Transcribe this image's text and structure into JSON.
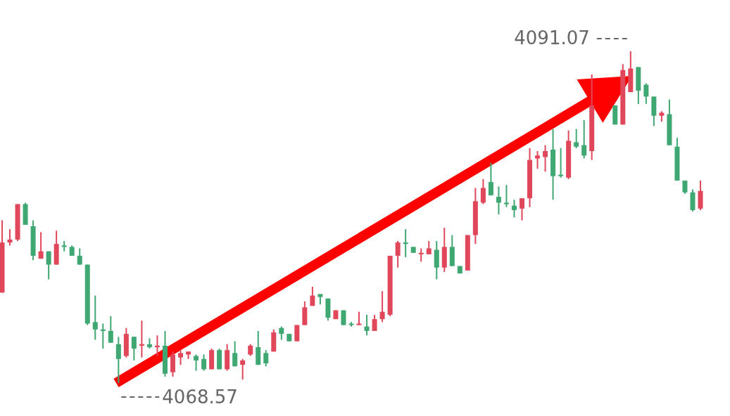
{
  "chart_data": {
    "type": "candlestick",
    "categories": [
      null,
      null,
      null,
      null,
      null,
      null,
      null,
      null,
      null,
      null,
      null,
      null,
      null,
      null,
      null,
      null,
      null,
      null,
      null,
      null,
      null,
      null,
      null,
      null,
      null,
      null,
      null,
      null,
      null,
      null,
      null,
      null,
      null,
      null,
      null,
      null,
      null,
      null,
      null,
      null,
      null,
      null,
      null,
      null,
      null,
      null,
      null,
      null,
      null,
      null,
      null,
      null,
      null,
      null,
      null,
      null,
      null,
      null,
      null,
      null,
      null,
      null,
      null,
      null,
      null,
      null,
      null,
      null,
      null,
      null,
      null,
      null,
      null,
      null,
      null,
      null,
      null,
      null,
      null,
      null,
      null,
      null,
      null,
      null,
      null,
      null,
      null,
      null,
      null,
      null,
      null
    ],
    "ohlc": [
      [
        4074.7,
        4079.6,
        4074.7,
        4078.1
      ],
      [
        4078.1,
        4079.0,
        4077.9,
        4078.3
      ],
      [
        4078.3,
        4080.7,
        4078.2,
        4080.7
      ],
      [
        4080.7,
        4080.8,
        4079.3,
        4079.3
      ],
      [
        4079.2,
        4079.6,
        4076.9,
        4077.2
      ],
      [
        4077.0,
        4078.8,
        4077.0,
        4077.5
      ],
      [
        4077.5,
        4077.5,
        4075.6,
        4076.6
      ],
      [
        4076.6,
        4078.9,
        4076.6,
        4078.0
      ],
      [
        4077.9,
        4078.2,
        4077.5,
        4077.8
      ],
      [
        4077.8,
        4077.9,
        4077.2,
        4077.2
      ],
      [
        4077.2,
        4077.7,
        4076.6,
        4076.6
      ],
      [
        4076.6,
        4076.6,
        4072.5,
        4072.6
      ],
      [
        4072.7,
        4074.5,
        4071.5,
        4072.2
      ],
      [
        4072.2,
        4072.6,
        4070.9,
        4072.1
      ],
      [
        4072.1,
        4073.1,
        4071.3,
        4071.3
      ],
      [
        4071.2,
        4071.7,
        4068.57,
        4070.2
      ],
      [
        4070.4,
        4072.3,
        4070.3,
        4071.9
      ],
      [
        4071.7,
        4071.7,
        4070.1,
        4070.9
      ],
      [
        4071.1,
        4072.8,
        4070.3,
        4071.2
      ],
      [
        4071.2,
        4071.6,
        4070.9,
        4071.0
      ],
      [
        4071.0,
        4071.8,
        4070.4,
        4071.1
      ],
      [
        4071.1,
        4072.1,
        4069.0,
        4069.2
      ],
      [
        4069.3,
        4070.7,
        4069.0,
        4070.5
      ],
      [
        4070.3,
        4070.8,
        4069.8,
        4070.6
      ],
      [
        4070.5,
        4070.7,
        4070.2,
        4070.7
      ],
      [
        4070.4,
        4070.5,
        4069.4,
        4070.1
      ],
      [
        4070.2,
        4070.5,
        4069.4,
        4069.5
      ],
      [
        4069.5,
        4070.9,
        4069.5,
        4070.8
      ],
      [
        4070.8,
        4070.9,
        4069.5,
        4069.5
      ],
      [
        4069.5,
        4071.2,
        4069.4,
        4070.8
      ],
      [
        4070.6,
        4071.4,
        4069.7,
        4069.7
      ],
      [
        4069.8,
        4070.2,
        4068.8,
        4070.1
      ],
      [
        4070.5,
        4071.2,
        4070.4,
        4071.1
      ],
      [
        4071.0,
        4072.1,
        4069.8,
        4069.8
      ],
      [
        4070.6,
        4070.8,
        4069.7,
        4069.9
      ],
      [
        4070.7,
        4072.2,
        4070.7,
        4072.0
      ],
      [
        4072.3,
        4072.4,
        4071.5,
        4071.9
      ],
      [
        4071.9,
        4071.9,
        4071.4,
        4071.4
      ],
      [
        4071.4,
        4072.5,
        4071.4,
        4072.5
      ],
      [
        4072.5,
        4074.1,
        4072.5,
        4073.7
      ],
      [
        4073.8,
        4075.1,
        4073.8,
        4074.5
      ],
      [
        4074.6,
        4074.6,
        4073.9,
        4074.4
      ],
      [
        4074.3,
        4074.3,
        4072.8,
        4073.0
      ],
      [
        4072.9,
        4073.5,
        4072.9,
        4073.5
      ],
      [
        4073.5,
        4073.5,
        4072.5,
        4072.5
      ],
      [
        4072.6,
        4072.7,
        4072.4,
        4072.5
      ],
      [
        4072.5,
        4073.4,
        4072.5,
        4072.6
      ],
      [
        4072.4,
        4073.2,
        4071.8,
        4072.1
      ],
      [
        4072.1,
        4073.2,
        4072.1,
        4072.9
      ],
      [
        4072.9,
        4074.8,
        4072.7,
        4073.4
      ],
      [
        4073.2,
        4077.2,
        4073.1,
        4077.2
      ],
      [
        4077.2,
        4078.2,
        4076.4,
        4078.1
      ],
      [
        4078.1,
        4079.0,
        4077.1,
        4078.0
      ],
      [
        4077.8,
        4077.8,
        4077.4,
        4077.4
      ],
      [
        4077.3,
        4077.7,
        4076.8,
        4077.4
      ],
      [
        4077.3,
        4078.2,
        4077.3,
        4077.7
      ],
      [
        4077.6,
        4078.2,
        4075.6,
        4076.4
      ],
      [
        4076.4,
        4079.1,
        4076.1,
        4077.8
      ],
      [
        4077.8,
        4078.6,
        4076.5,
        4076.5
      ],
      [
        4076.5,
        4076.5,
        4076.0,
        4076.0
      ],
      [
        4076.2,
        4078.6,
        4076.2,
        4078.6
      ],
      [
        4078.6,
        4081.8,
        4078.0,
        4080.9
      ],
      [
        4080.8,
        4082.4,
        4080.7,
        4081.8
      ],
      [
        4082.2,
        4083.5,
        4081.3,
        4081.3
      ],
      [
        4081.2,
        4081.9,
        4080.0,
        4080.8
      ],
      [
        4080.8,
        4082.0,
        4080.5,
        4080.7
      ],
      [
        4080.6,
        4081.0,
        4079.8,
        4080.3
      ],
      [
        4080.4,
        4081.1,
        4079.6,
        4081.1
      ],
      [
        4081.1,
        4084.5,
        4080.5,
        4083.7
      ],
      [
        4083.8,
        4084.3,
        4083.1,
        4084.0
      ],
      [
        4083.9,
        4084.7,
        4082.9,
        4084.3
      ],
      [
        4084.4,
        4085.8,
        4081.0,
        4082.6
      ],
      [
        4082.7,
        4084.5,
        4082.5,
        4082.6
      ],
      [
        4082.5,
        4085.7,
        4082.4,
        4085.0
      ],
      [
        4084.9,
        4085.8,
        4084.5,
        4084.6
      ],
      [
        4084.7,
        4086.4,
        4083.8,
        4084.0
      ],
      [
        4084.3,
        4089.5,
        4083.7,
        4087.4
      ],
      null,
      null,
      [
        4087.4,
        4087.4,
        4086.1,
        4086.1
      ],
      [
        4086.1,
        4090.2,
        4086.1,
        4089.8
      ],
      [
        4088.3,
        4091.07,
        4088.3,
        4089.9
      ],
      [
        4090.0,
        4090.0,
        4087.5,
        4088.4
      ],
      [
        4088.8,
        4088.9,
        4087.5,
        4088.0
      ],
      [
        4088.0,
        4088.0,
        4086.0,
        4086.7
      ],
      [
        4086.7,
        4087.0,
        4086.3,
        4086.9
      ],
      [
        4086.8,
        4087.8,
        4084.7,
        4084.7
      ],
      [
        4084.6,
        4085.2,
        4082.3,
        4082.3
      ],
      [
        4082.3,
        4082.3,
        4081.4,
        4081.5
      ],
      [
        4081.5,
        4081.7,
        4080.2,
        4080.3
      ],
      [
        4080.4,
        4082.3,
        4080.3,
        4081.6
      ]
    ],
    "colors": [
      "#e0475a",
      "#e0475a",
      "#e0475a",
      "#3fa772",
      "#3fa772",
      "#e0475a",
      "#3fa772",
      "#e0475a",
      "#3fa772",
      "#3fa772",
      "#3fa772",
      "#3fa772",
      "#3fa772",
      "#3fa772",
      "#3fa772",
      "#3fa772",
      "#e0475a",
      "#3fa772",
      "#e0475a",
      "#3fa772",
      "#e0475a",
      "#3fa772",
      "#e0475a",
      "#e0475a",
      "#e0475a",
      "#3fa772",
      "#3fa772",
      "#e0475a",
      "#3fa772",
      "#e0475a",
      "#3fa772",
      "#e0475a",
      "#e0475a",
      "#3fa772",
      "#3fa772",
      "#e0475a",
      "#3fa772",
      "#3fa772",
      "#e0475a",
      "#e0475a",
      "#e0475a",
      "#3fa772",
      "#3fa772",
      "#e0475a",
      "#3fa772",
      "#3fa772",
      "#e0475a",
      "#3fa772",
      "#e0475a",
      "#e0475a",
      "#e0475a",
      "#e0475a",
      "#3fa772",
      "#3fa772",
      "#e0475a",
      "#e0475a",
      "#3fa772",
      "#e0475a",
      "#3fa772",
      "#3fa772",
      "#e0475a",
      "#e0475a",
      "#e0475a",
      "#3fa772",
      "#3fa772",
      "#3fa772",
      "#3fa772",
      "#e0475a",
      "#e0475a",
      "#e0475a",
      "#e0475a",
      "#3fa772",
      "#3fa772",
      "#e0475a",
      "#3fa772",
      "#3fa772",
      "#e0475a",
      null,
      null,
      "#3fa772",
      "#e0475a",
      "#e0475a",
      "#3fa772",
      "#3fa772",
      "#3fa772",
      "#e0475a",
      "#3fa772",
      "#3fa772",
      "#3fa772",
      "#3fa772",
      "#e0475a"
    ],
    "annotations": [
      "4091.07",
      "4068.57"
    ]
  }
}
